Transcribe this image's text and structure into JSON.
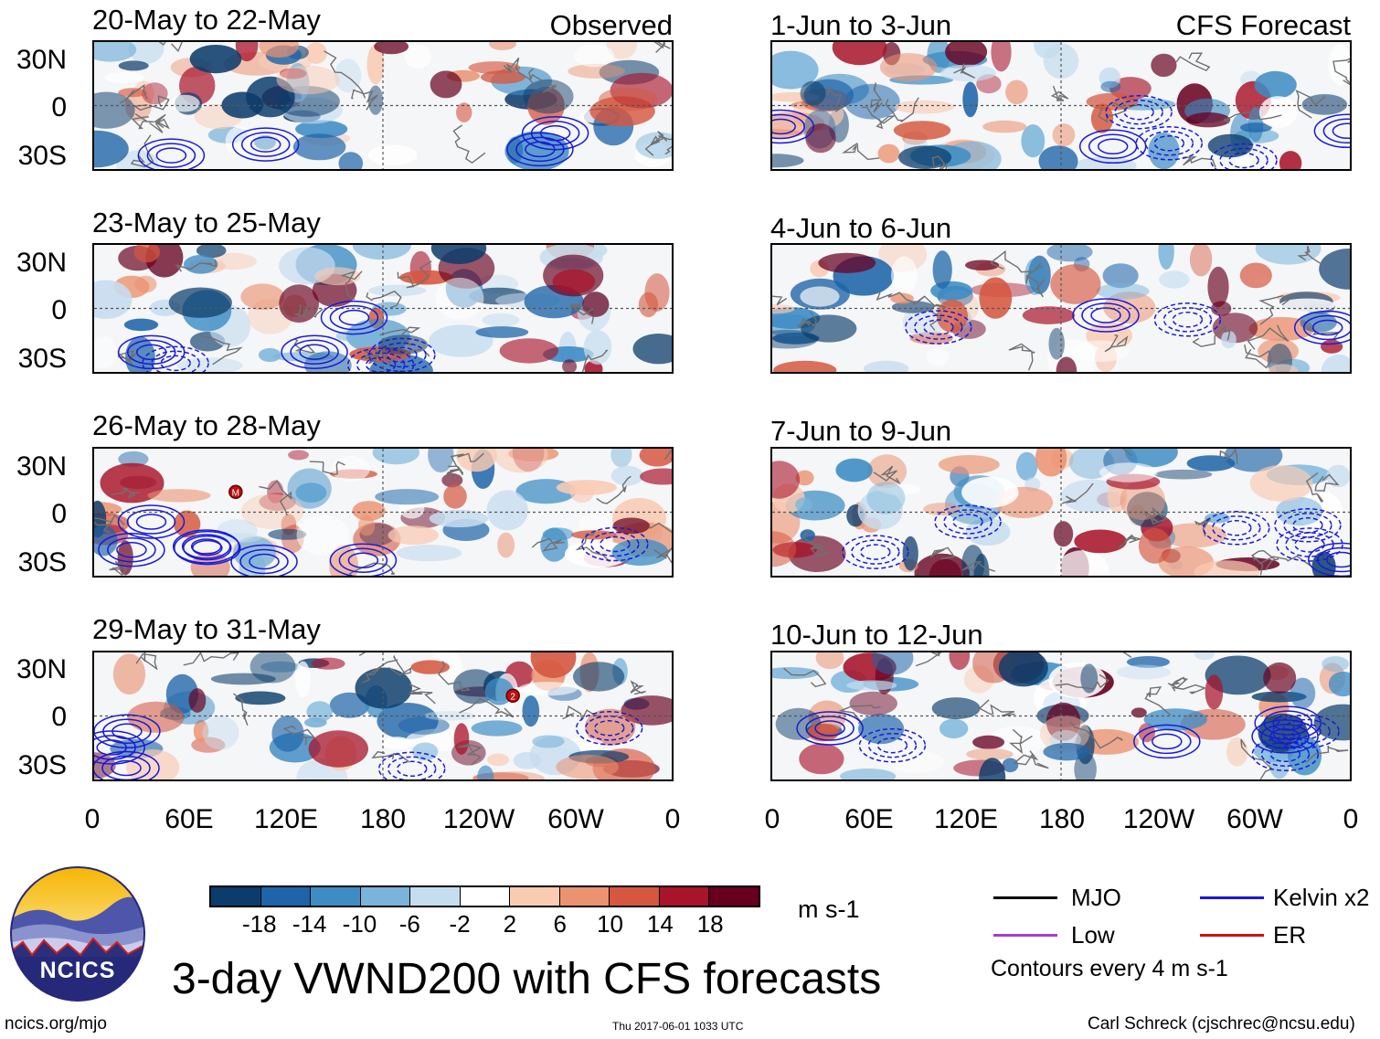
{
  "title": "3-day VWND200 with CFS forecasts",
  "units": "m s-1",
  "contour_note": "Contours every 4 m s-1",
  "footer": {
    "url": "ncics.org/mjo",
    "timestamp": "Thu 2017-06-01 1033 UTC",
    "author": "Carl Schreck (cjschrec@ncsu.edu)"
  },
  "logo_text": "NCICS",
  "latitude_labels": [
    "30N",
    "0",
    "30S"
  ],
  "longitude_labels": [
    "0",
    "60E",
    "120E",
    "180",
    "120W",
    "60W",
    "0"
  ],
  "panels_left": [
    {
      "date": "20-May to 22-May",
      "source": "Observed"
    },
    {
      "date": "23-May to 25-May",
      "source": ""
    },
    {
      "date": "26-May to 28-May",
      "source": ""
    },
    {
      "date": "29-May to 31-May",
      "source": ""
    }
  ],
  "panels_right": [
    {
      "date": "1-Jun to 3-Jun",
      "source": "CFS Forecast"
    },
    {
      "date": "4-Jun to 6-Jun",
      "source": ""
    },
    {
      "date": "7-Jun to 9-Jun",
      "source": ""
    },
    {
      "date": "10-Jun to 12-Jun",
      "source": ""
    }
  ],
  "colorbar": {
    "tick_labels": [
      "-18",
      "-14",
      "-10",
      "-6",
      "-2",
      "2",
      "6",
      "10",
      "14",
      "18"
    ],
    "colors": [
      "#0b3c6b",
      "#1d64a8",
      "#3d8cc4",
      "#7ab4da",
      "#c6ddef",
      "#ffffff",
      "#f9cbb3",
      "#eb9270",
      "#d5573f",
      "#a8142a",
      "#67001f"
    ]
  },
  "legend": [
    {
      "label": "MJO",
      "color": "#000000"
    },
    {
      "label": "Kelvin x2",
      "color": "#1a1ad6"
    },
    {
      "label": "Low",
      "color": "#a040d0"
    },
    {
      "label": "ER",
      "color": "#d01010"
    }
  ],
  "storm_markers": [
    {
      "panel": "left-2",
      "symbol": "M"
    },
    {
      "panel": "left-3",
      "symbol": "2"
    }
  ]
}
